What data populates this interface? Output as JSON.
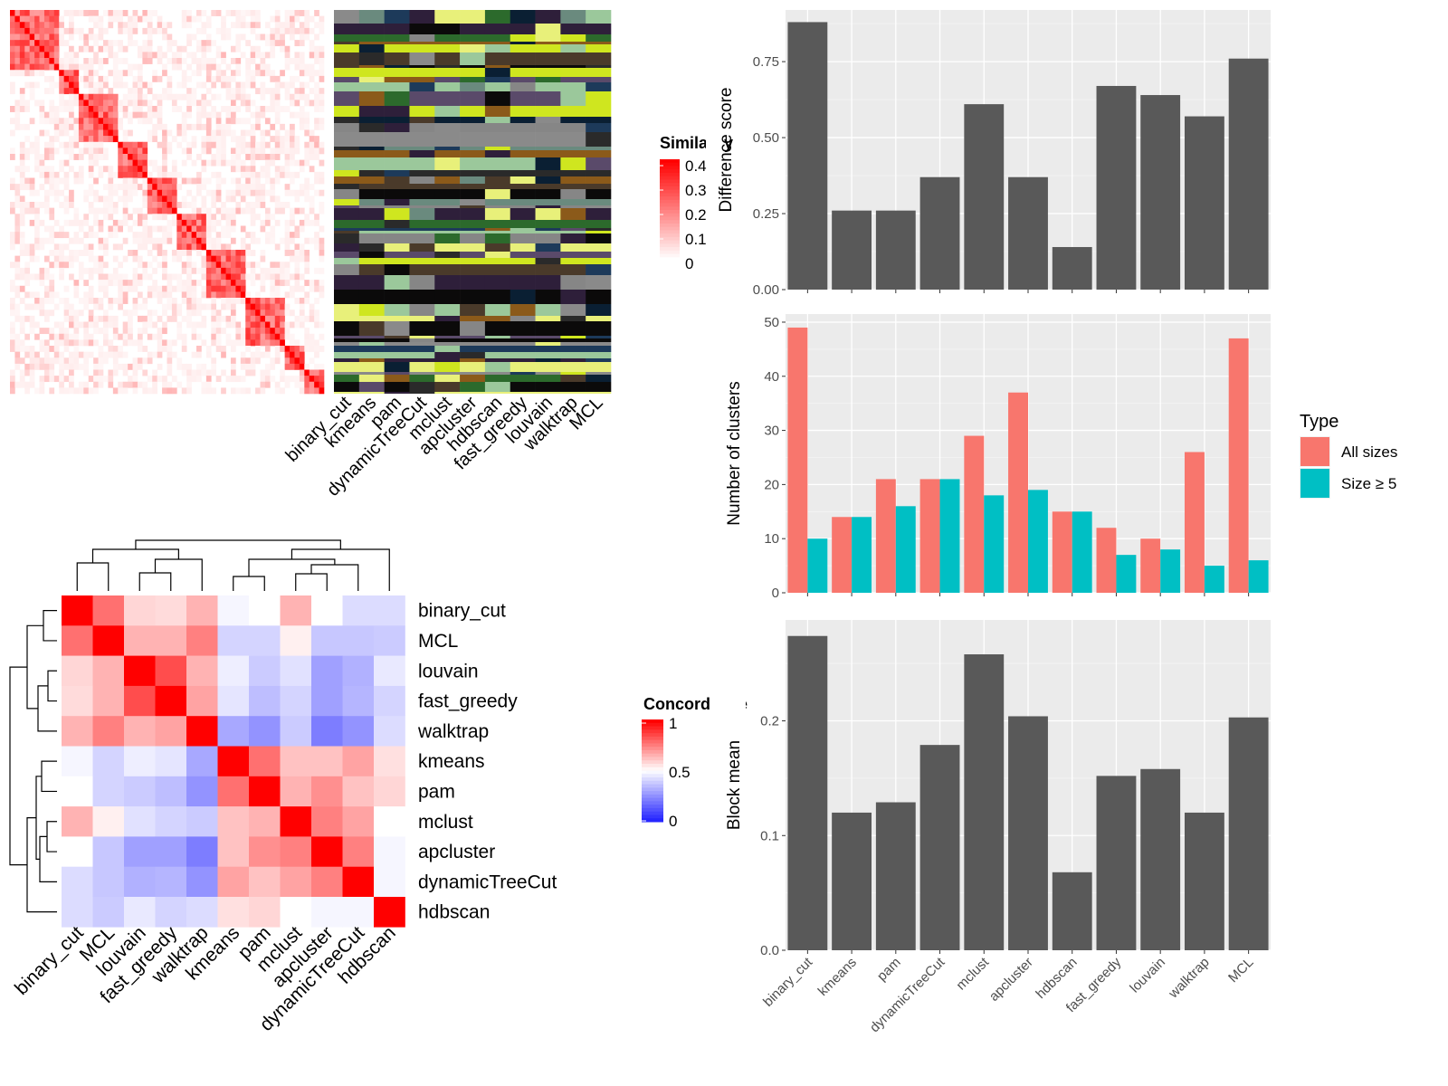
{
  "methods": [
    "binary_cut",
    "kmeans",
    "pam",
    "dynamicTreeCut",
    "mclust",
    "apcluster",
    "hdbscan",
    "fast_greedy",
    "louvain",
    "walktrap",
    "MCL"
  ],
  "colors": {
    "bar": "#595959",
    "panel_bg": "#ebebeb",
    "grid_major": "#ffffff",
    "all_sizes": "#F8766D",
    "size_ge5": "#00BFC4",
    "heat_high": "#ff0000",
    "heat_low": "#0000ff",
    "heat_mid": "#ffffff"
  },
  "similarity_panel": {
    "legend_title": "Similarity",
    "legend_ticks": [
      "0.4",
      "0.3",
      "0.2",
      "0.1",
      "0"
    ],
    "column_labels": [
      "binary_cut",
      "kmeans",
      "pam",
      "dynamicTreeCut",
      "mclust",
      "apcluster",
      "hdbscan",
      "fast_greedy",
      "louvain",
      "walktrap",
      "MCL"
    ]
  },
  "concordance_panel": {
    "legend_title": "Concordance",
    "legend_ticks": [
      "1",
      "0.5",
      "0"
    ],
    "row_labels": [
      "binary_cut",
      "MCL",
      "louvain",
      "fast_greedy",
      "walktrap",
      "kmeans",
      "pam",
      "mclust",
      "apcluster",
      "dynamicTreeCut",
      "hdbscan"
    ],
    "col_labels": [
      "binary_cut",
      "MCL",
      "louvain",
      "fast_greedy",
      "walktrap",
      "kmeans",
      "pam",
      "mclust",
      "apcluster",
      "dynamicTreeCut",
      "hdbscan"
    ],
    "matrix": [
      [
        1.0,
        0.78,
        0.58,
        0.57,
        0.65,
        0.48,
        0.5,
        0.65,
        0.5,
        0.42,
        0.42
      ],
      [
        0.78,
        1.0,
        0.65,
        0.65,
        0.75,
        0.4,
        0.4,
        0.53,
        0.37,
        0.37,
        0.38
      ],
      [
        0.58,
        0.65,
        1.0,
        0.85,
        0.65,
        0.46,
        0.38,
        0.43,
        0.28,
        0.32,
        0.45
      ],
      [
        0.57,
        0.65,
        0.85,
        1.0,
        0.68,
        0.44,
        0.35,
        0.4,
        0.28,
        0.33,
        0.4
      ],
      [
        0.65,
        0.75,
        0.65,
        0.68,
        1.0,
        0.3,
        0.25,
        0.38,
        0.2,
        0.25,
        0.42
      ],
      [
        0.48,
        0.4,
        0.46,
        0.44,
        0.3,
        1.0,
        0.78,
        0.62,
        0.62,
        0.68,
        0.56
      ],
      [
        0.5,
        0.4,
        0.38,
        0.35,
        0.25,
        0.78,
        1.0,
        0.65,
        0.72,
        0.62,
        0.58
      ],
      [
        0.65,
        0.53,
        0.43,
        0.4,
        0.38,
        0.62,
        0.65,
        1.0,
        0.75,
        0.68,
        0.5
      ],
      [
        0.5,
        0.37,
        0.28,
        0.28,
        0.2,
        0.62,
        0.72,
        0.75,
        1.0,
        0.75,
        0.48
      ],
      [
        0.42,
        0.37,
        0.32,
        0.33,
        0.25,
        0.68,
        0.62,
        0.68,
        0.75,
        1.0,
        0.48
      ],
      [
        0.42,
        0.38,
        0.45,
        0.4,
        0.42,
        0.56,
        0.58,
        0.5,
        0.48,
        0.48,
        1.0
      ]
    ]
  },
  "chart_data": [
    {
      "type": "bar",
      "categories": [
        "binary_cut",
        "kmeans",
        "pam",
        "dynamicTreeCut",
        "mclust",
        "apcluster",
        "hdbscan",
        "fast_greedy",
        "louvain",
        "walktrap",
        "MCL"
      ],
      "values": [
        0.88,
        0.26,
        0.26,
        0.37,
        0.61,
        0.37,
        0.14,
        0.67,
        0.64,
        0.57,
        0.76
      ],
      "xlabel": "",
      "ylabel": "Difference score",
      "ylim": [
        0,
        0.92
      ],
      "yticks": [
        0,
        0.25,
        0.5,
        0.75
      ],
      "ytick_labels": [
        "0.00",
        "0.25",
        "0.50",
        "0.75"
      ],
      "grid": true
    },
    {
      "type": "bar",
      "categories": [
        "binary_cut",
        "kmeans",
        "pam",
        "dynamicTreeCut",
        "mclust",
        "apcluster",
        "hdbscan",
        "fast_greedy",
        "louvain",
        "walktrap",
        "MCL"
      ],
      "series": [
        {
          "name": "All sizes",
          "values": [
            49,
            14,
            21,
            21,
            29,
            37,
            15,
            12,
            10,
            26,
            47
          ]
        },
        {
          "name": "Size ≥ 5",
          "values": [
            10,
            14,
            16,
            21,
            18,
            19,
            15,
            7,
            8,
            5,
            6
          ]
        }
      ],
      "xlabel": "",
      "ylabel": "Number of clusters",
      "ylim": [
        0,
        51.5
      ],
      "yticks": [
        0,
        10,
        20,
        30,
        40,
        50
      ],
      "ytick_labels": [
        "0",
        "10",
        "20",
        "30",
        "40",
        "50"
      ],
      "legend_title": "Type",
      "legend_position": "right",
      "grid": true
    },
    {
      "type": "bar",
      "categories": [
        "binary_cut",
        "kmeans",
        "pam",
        "dynamicTreeCut",
        "mclust",
        "apcluster",
        "hdbscan",
        "fast_greedy",
        "louvain",
        "walktrap",
        "MCL"
      ],
      "values": [
        0.274,
        0.12,
        0.129,
        0.179,
        0.258,
        0.204,
        0.068,
        0.152,
        0.158,
        0.12,
        0.203
      ],
      "xlabel": "",
      "ylabel": "Block mean",
      "ylim": [
        0,
        0.288
      ],
      "yticks": [
        0,
        0.1,
        0.2
      ],
      "ytick_labels": [
        "0.0",
        "0.1",
        "0.2"
      ],
      "grid": true
    }
  ]
}
